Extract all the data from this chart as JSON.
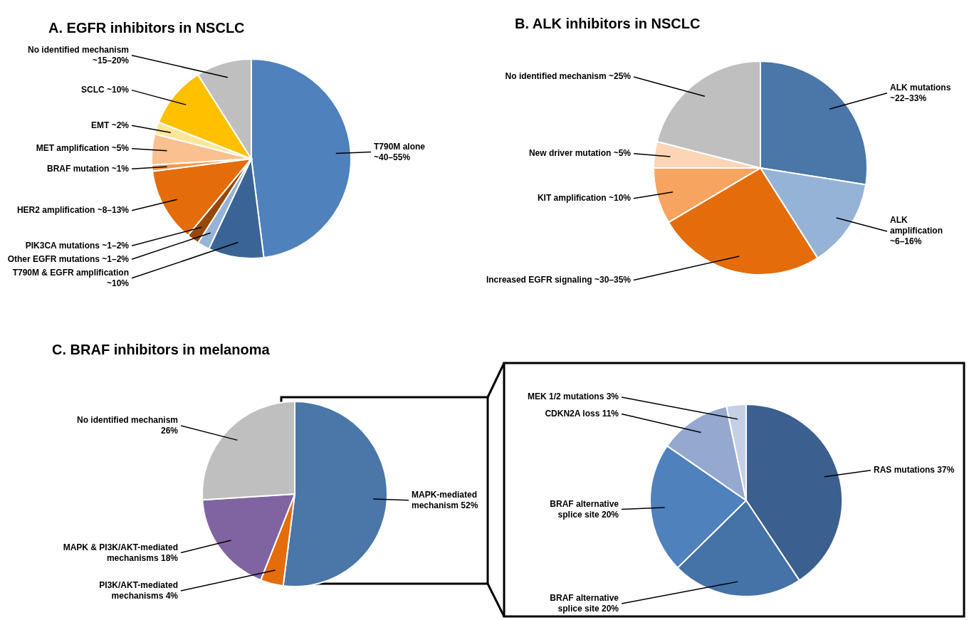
{
  "chart_data": [
    {
      "type": "pie",
      "title": "A. EGFR inhibitors in NSCLC",
      "categories": [
        "T790M alone ~40–55%",
        "T790M & EGFR amplification ~10%",
        "Other EGFR mutations ~1–2%",
        "PIK3CA mutations ~1–2%",
        "HER2 amplification ~8–13%",
        "BRAF mutation ~1%",
        "MET amplification ~5%",
        "EMT ~2%",
        "SCLC ~10%",
        "No identified mechanism ~15–20%"
      ],
      "values": [
        48,
        9,
        2,
        2,
        12,
        1,
        5,
        2,
        10,
        9
      ],
      "colors": [
        "#4f81bd",
        "#3a6496",
        "#95b3d7",
        "#974706",
        "#e46c0a",
        "#f79646",
        "#fac090",
        "#ffe699",
        "#ffc000",
        "#bfbfbf"
      ]
    },
    {
      "type": "pie",
      "title": "B. ALK inhibitors in NSCLC",
      "categories": [
        "ALK mutations ~22–33%",
        "ALK amplification ~6–16%",
        "Increased EGFR signaling ~30–35%",
        "KIT amplification ~10%",
        "New driver mutation ~5%",
        "No identified mechanism ~25%"
      ],
      "values": [
        27.5,
        13.5,
        25.5,
        8.5,
        4,
        21
      ],
      "colors": [
        "#4a76a8",
        "#95b3d7",
        "#e46c0a",
        "#f6a45f",
        "#fbd5b5",
        "#bfbfbf"
      ]
    },
    {
      "type": "pie",
      "title": "C. BRAF inhibitors in melanoma",
      "categories": [
        "MAPK-mediated mechanism",
        "PI3K/AKT-mediated mechanisms",
        "MAPK & PI3K/AKT-mediated mechanisms",
        "No identified mechanism"
      ],
      "values": [
        52,
        4,
        18,
        26
      ],
      "value_labels": [
        "52%",
        "4%",
        "18%",
        "26%"
      ],
      "colors": [
        "#4a76a8",
        "#e46c0a",
        "#8064a2",
        "#bfbfbf"
      ]
    },
    {
      "type": "pie",
      "categories": [
        "RAS mutations",
        "BRAF alternative splice site",
        "BRAF alternative splice site",
        "CDKN2A loss",
        "MEK 1/2 mutations"
      ],
      "values": [
        37,
        20,
        20,
        11,
        3
      ],
      "value_labels": [
        "37%",
        "20%",
        "20%",
        "11%",
        "3%"
      ],
      "colors": [
        "#3b5f8f",
        "#4572a7",
        "#4f81bd",
        "#95a8cf",
        "#c5d0e6"
      ]
    }
  ]
}
